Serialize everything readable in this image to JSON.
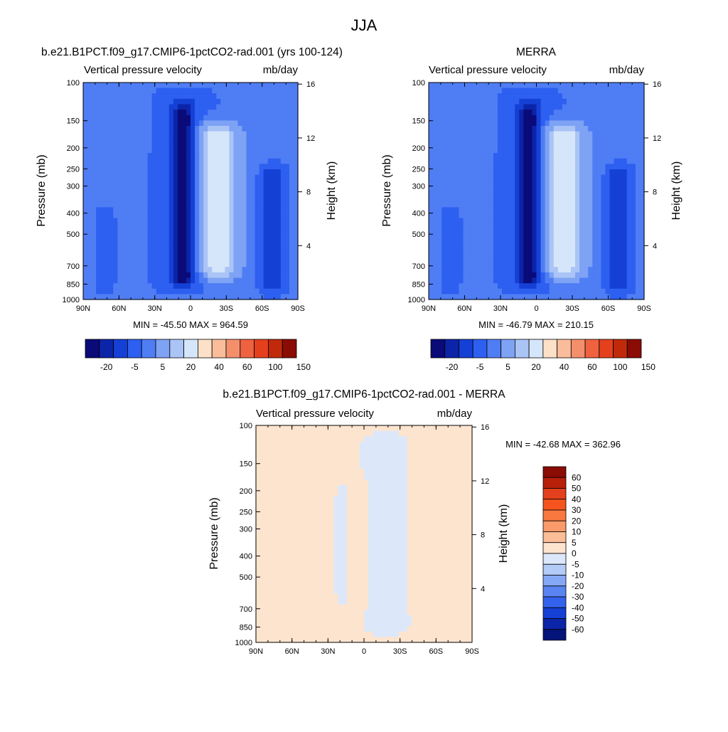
{
  "figure_title": "JJA",
  "chart_data": [
    {
      "type": "heatmap",
      "title": "b.e21.B1PCT.f09_g17.CMIP6-1pctCO2-rad.001 (yrs 100-124)",
      "left_string": "Vertical pressure velocity",
      "right_string": "mb/day",
      "ylabel": "Pressure (mb)",
      "ylabel_right": "Height (km)",
      "x_ticks": [
        "90N",
        "60N",
        "30N",
        "0",
        "30S",
        "60S",
        "90S"
      ],
      "y_ticks": [
        "100",
        "150",
        "200",
        "250",
        "300",
        "400",
        "500",
        "700",
        "850",
        "1000"
      ],
      "y_ticks_right": [
        "16",
        "12",
        "8",
        "4"
      ],
      "min_max": "MIN = -45.50  MAX = 964.59",
      "min": -45.5,
      "max": 964.59,
      "colorbar_labels": [
        "-20",
        "-5",
        "5",
        "20",
        "40",
        "60",
        "100",
        "150"
      ],
      "colorbar_colors": [
        "#0a0a78",
        "#0b24a8",
        "#1440d6",
        "#2d5ff0",
        "#4f7df4",
        "#7ea2f4",
        "#aac4f6",
        "#d6e6fa",
        "#fde0c8",
        "#f9bd9b",
        "#f48f6c",
        "#ef6240",
        "#e5401d",
        "#c02a0a",
        "#8b0b05"
      ]
    },
    {
      "type": "heatmap",
      "title": "MERRA",
      "left_string": "Vertical pressure velocity",
      "right_string": "mb/day",
      "ylabel": "Pressure (mb)",
      "ylabel_right": "Height (km)",
      "x_ticks": [
        "90N",
        "60N",
        "30N",
        "0",
        "30S",
        "60S",
        "90S"
      ],
      "y_ticks": [
        "100",
        "150",
        "200",
        "250",
        "300",
        "400",
        "500",
        "700",
        "850",
        "1000"
      ],
      "y_ticks_right": [
        "16",
        "12",
        "8",
        "4"
      ],
      "min_max": "MIN = -46.79  MAX = 210.15",
      "min": -46.79,
      "max": 210.15,
      "colorbar_labels": [
        "-20",
        "-5",
        "5",
        "20",
        "40",
        "60",
        "100",
        "150"
      ],
      "colorbar_colors": [
        "#0a0a78",
        "#0b24a8",
        "#1440d6",
        "#2d5ff0",
        "#4f7df4",
        "#7ea2f4",
        "#aac4f6",
        "#d6e6fa",
        "#fde0c8",
        "#f9bd9b",
        "#f48f6c",
        "#ef6240",
        "#e5401d",
        "#c02a0a",
        "#8b0b05"
      ]
    },
    {
      "type": "heatmap",
      "title": "b.e21.B1PCT.f09_g17.CMIP6-1pctCO2-rad.001 - MERRA",
      "left_string": "Vertical pressure velocity",
      "right_string": "mb/day",
      "ylabel": "Pressure (mb)",
      "ylabel_right": "Height (km)",
      "x_ticks": [
        "90N",
        "60N",
        "30N",
        "0",
        "30S",
        "60S",
        "90S"
      ],
      "y_ticks": [
        "100",
        "150",
        "200",
        "250",
        "300",
        "400",
        "500",
        "700",
        "850",
        "1000"
      ],
      "y_ticks_right": [
        "16",
        "12",
        "8",
        "4"
      ],
      "min_max": "MIN = -42.68  MAX = 362.96",
      "min": -42.68,
      "max": 362.96,
      "colorbar_labels": [
        "60",
        "50",
        "40",
        "30",
        "20",
        "10",
        "5",
        "0",
        "-5",
        "-10",
        "-20",
        "-30",
        "-40",
        "-50",
        "-60"
      ],
      "colorbar_colors": [
        "#8b0b05",
        "#b8200a",
        "#e5401d",
        "#f6541f",
        "#f9783f",
        "#fa9a6a",
        "#fbbd97",
        "#fde4cf",
        "#dce8fa",
        "#b3cbf7",
        "#86a8f4",
        "#5a84f1",
        "#3462ee",
        "#1440d6",
        "#0b24a8",
        "#05147a"
      ]
    }
  ]
}
